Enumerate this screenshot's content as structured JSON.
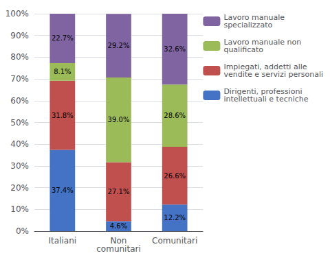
{
  "chart_data": {
    "type": "bar",
    "stacked": true,
    "categories": [
      "Italiani",
      "Non\ncomunitari",
      "Comunitari"
    ],
    "series": [
      {
        "name": "Dirigenti, professioni\nintellettuali e tecniche",
        "color": "#4472C4",
        "values": [
          37.4,
          4.6,
          12.2
        ],
        "value_labels": [
          "37.4%",
          "4.6%",
          "12.2%"
        ]
      },
      {
        "name": "Impiegati, addetti alle\nvendite e servizi personali",
        "color": "#C0504D",
        "values": [
          31.8,
          27.1,
          26.6
        ],
        "value_labels": [
          "31.8%",
          "27.1%",
          "26.6%"
        ]
      },
      {
        "name": "Lavoro manuale non\nqualificato",
        "color": "#9BBB59",
        "values": [
          8.1,
          39.0,
          28.6
        ],
        "value_labels": [
          "8.1%",
          "39.0%",
          "28.6%"
        ]
      },
      {
        "name": "Lavoro manuale\nspecializzato",
        "color": "#8064A2",
        "values": [
          22.7,
          29.2,
          32.6
        ],
        "value_labels": [
          "22.7%",
          "29.2%",
          "32.6%"
        ]
      }
    ],
    "ylim": [
      0,
      100
    ],
    "yticks": [
      {
        "value": 0,
        "label": "0%"
      },
      {
        "value": 10,
        "label": "10%"
      },
      {
        "value": 20,
        "label": "20%"
      },
      {
        "value": 30,
        "label": "30%"
      },
      {
        "value": 40,
        "label": "40%"
      },
      {
        "value": 50,
        "label": "50%"
      },
      {
        "value": 60,
        "label": "60%"
      },
      {
        "value": 70,
        "label": "70%"
      },
      {
        "value": 80,
        "label": "80%"
      },
      {
        "value": 90,
        "label": "90%"
      },
      {
        "value": 100,
        "label": "100%"
      }
    ],
    "grid": true,
    "data_labels": true,
    "legend": "right"
  }
}
